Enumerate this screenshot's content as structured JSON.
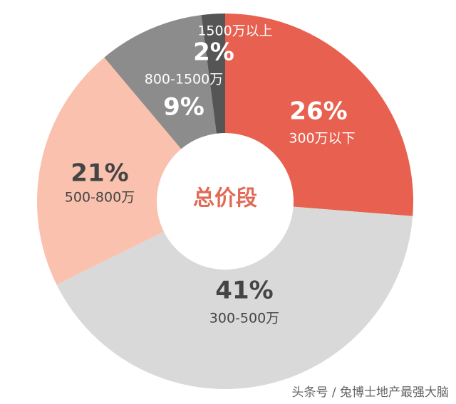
{
  "chart_data": {
    "type": "donut",
    "center_label": "总价段",
    "categories": [
      "300万以下",
      "300-500万",
      "500-800万",
      "800-1500万",
      "1500万以上"
    ],
    "values": [
      26,
      41,
      21,
      9,
      2
    ],
    "value_labels": [
      "26%",
      "41%",
      "21%",
      "9%",
      "2%"
    ],
    "colors": [
      "#e8604f",
      "#d9d9d9",
      "#f9c1ae",
      "#8c8c8c",
      "#555555"
    ]
  },
  "watermark": "头条号 / 兔博士地产最强大脑"
}
